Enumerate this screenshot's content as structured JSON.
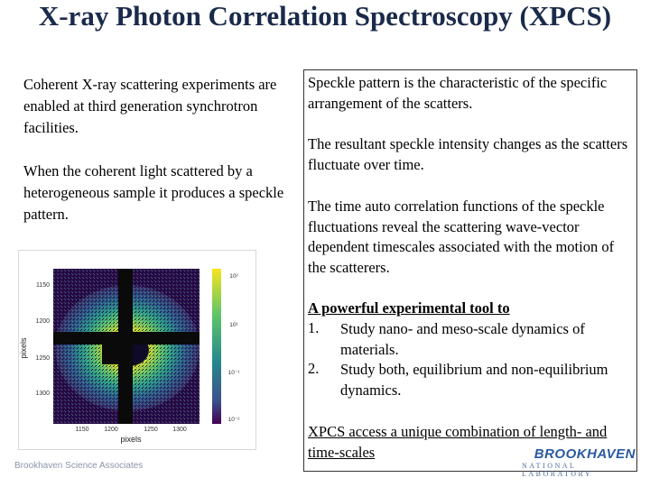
{
  "title": "X-ray Photon Correlation Spectroscopy (XPCS)",
  "left": {
    "p1": "Coherent X-ray scattering experiments are enabled at third generation synchrotron facilities.",
    "p2": "When the coherent light scattered by a heterogeneous sample it produces a  speckle pattern."
  },
  "right": {
    "p1": "Speckle pattern is the characteristic of the specific arrangement of the scatters.",
    "p2": "The resultant speckle intensity changes as the scatters fluctuate over time.",
    "p3": "The time auto correlation functions of the speckle fluctuations reveal the scattering wave-vector dependent timescales associated with the motion of the scatterers.",
    "tool_heading": "A powerful experimental tool to",
    "items": [
      {
        "num": "1.",
        "text": "Study nano- and meso-scale dynamics of materials."
      },
      {
        "num": "2.",
        "text": "Study both, equilibrium and non-equilibrium dynamics."
      }
    ],
    "closing": "XPCS access a unique combination of length- and time-scales"
  },
  "figure": {
    "xlabel": "pixels",
    "ylabel": "pixels",
    "yticks": [
      "1150",
      "1200",
      "1250",
      "1300"
    ],
    "xticks": [
      "1150",
      "1200",
      "1250",
      "1300"
    ],
    "cbar_ticks": [
      "10²",
      "10¹",
      "10⁻¹",
      "10⁻²"
    ]
  },
  "footer": "Brookhaven Science Associates",
  "logo": {
    "main": "BROOKHAVEN",
    "sub": "NATIONAL LABORATORY"
  }
}
